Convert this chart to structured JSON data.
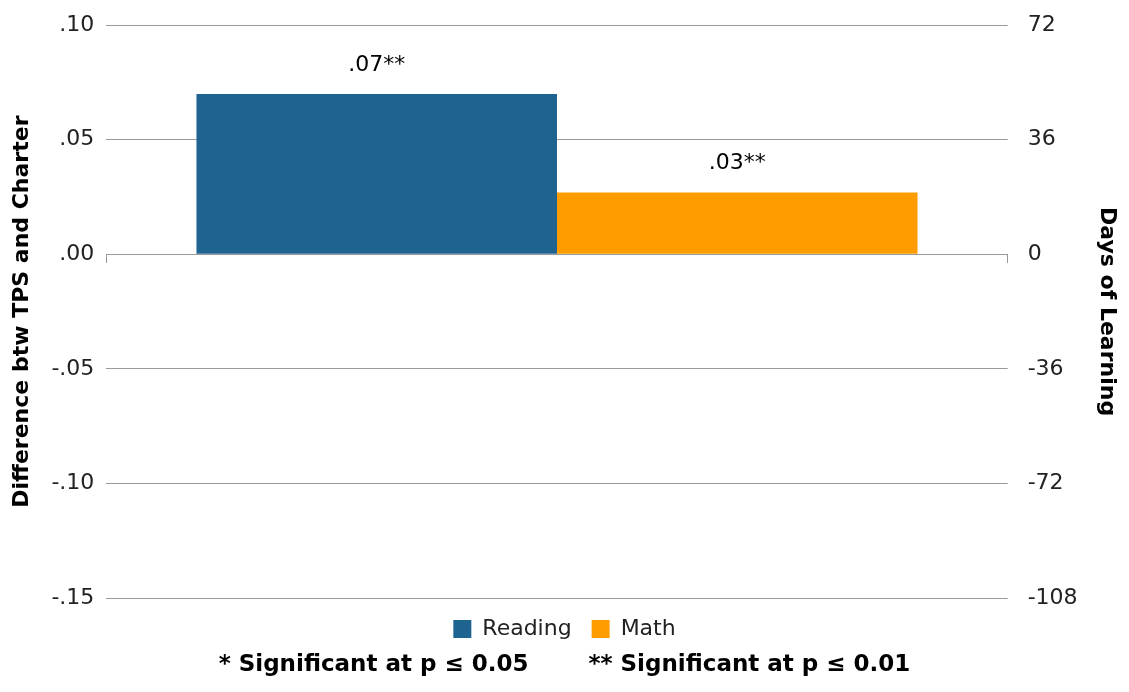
{
  "chart_data": {
    "type": "bar",
    "categories": [
      null
    ],
    "series": [
      {
        "name": "Reading",
        "color": "#1f6391",
        "values": [
          0.07
        ],
        "value_labels": [
          ".07**"
        ]
      },
      {
        "name": "Math",
        "color": "#ff9c00",
        "values": [
          0.027
        ],
        "value_labels": [
          ".03**"
        ]
      }
    ],
    "ylabel": "Difference btw TPS and Charter",
    "y2label": "Days of Learning",
    "ylim": [
      -0.15,
      0.1
    ],
    "yticks": [
      {
        "value": 0.1,
        "label": ".10"
      },
      {
        "value": 0.05,
        "label": ".05"
      },
      {
        "value": 0,
        "label": ".00"
      },
      {
        "value": -0.05,
        "label": "-.05"
      },
      {
        "value": -0.1,
        "label": "-.10"
      },
      {
        "value": -0.15,
        "label": "-.15"
      }
    ],
    "y2lim": [
      -108,
      72
    ],
    "y2ticks": [
      72,
      36,
      0,
      -36,
      -72,
      -108
    ],
    "grid": "y",
    "legend": "bottom",
    "annotations": [
      "* Significant at p ≤ 0.05",
      "** Significant at p ≤ 0.01"
    ]
  }
}
